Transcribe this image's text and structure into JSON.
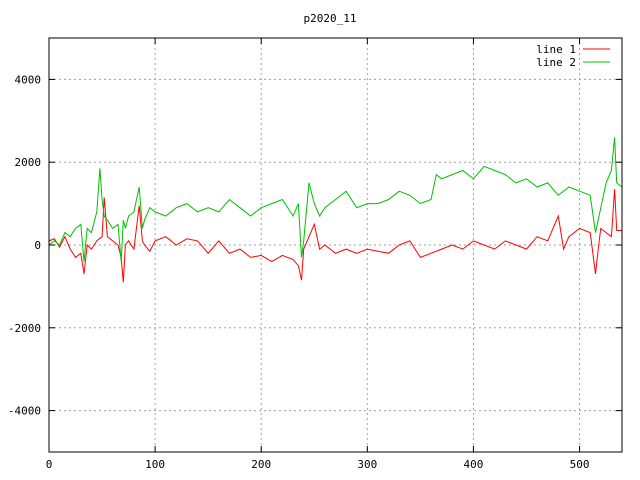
{
  "chart_data": {
    "type": "line",
    "title": "p2020_11",
    "xlabel": "",
    "ylabel": "",
    "xlim": [
      0,
      540
    ],
    "ylim": [
      -5000,
      5000
    ],
    "x_ticks": [
      "0",
      "100",
      "200",
      "300",
      "400",
      "500"
    ],
    "y_ticks": [
      "-4000",
      "-2000",
      "0",
      "2000",
      "4000"
    ],
    "grid": true,
    "legend_position": "top-right",
    "series": [
      {
        "name": "line 1",
        "color": "#ff0000",
        "x": [
          0,
          5,
          10,
          15,
          20,
          25,
          30,
          33,
          36,
          40,
          45,
          50,
          52,
          55,
          60,
          65,
          68,
          70,
          72,
          75,
          80,
          85,
          88,
          90,
          95,
          100,
          110,
          120,
          130,
          140,
          150,
          160,
          170,
          180,
          190,
          200,
          210,
          220,
          230,
          235,
          238,
          240,
          245,
          250,
          255,
          260,
          270,
          280,
          290,
          300,
          310,
          320,
          330,
          340,
          350,
          360,
          370,
          380,
          390,
          400,
          410,
          420,
          430,
          440,
          450,
          460,
          470,
          475,
          480,
          485,
          490,
          500,
          510,
          515,
          518,
          520,
          525,
          530,
          533,
          535,
          540
        ],
        "y": [
          100,
          150,
          -50,
          200,
          -100,
          -300,
          -200,
          -700,
          0,
          -100,
          100,
          200,
          1150,
          200,
          100,
          0,
          -300,
          -900,
          0,
          100,
          -100,
          950,
          100,
          0,
          -150,
          100,
          200,
          0,
          150,
          100,
          -200,
          100,
          -200,
          -100,
          -300,
          -250,
          -400,
          -250,
          -350,
          -500,
          -850,
          -100,
          200,
          500,
          -100,
          0,
          -200,
          -100,
          -200,
          -100,
          -150,
          -200,
          0,
          100,
          -300,
          -200,
          -100,
          0,
          -100,
          100,
          0,
          -100,
          100,
          0,
          -100,
          200,
          100,
          400,
          700,
          -100,
          200,
          400,
          300,
          -700,
          0,
          400,
          300,
          200,
          1350,
          350,
          350
        ]
      },
      {
        "name": "line 2",
        "color": "#00c000",
        "x": [
          0,
          5,
          10,
          15,
          20,
          25,
          30,
          33,
          36,
          40,
          45,
          48,
          50,
          52,
          55,
          60,
          65,
          68,
          70,
          72,
          75,
          80,
          85,
          88,
          90,
          95,
          100,
          110,
          120,
          130,
          140,
          150,
          160,
          170,
          180,
          190,
          200,
          210,
          220,
          230,
          235,
          238,
          240,
          245,
          250,
          255,
          260,
          270,
          280,
          290,
          300,
          310,
          320,
          330,
          340,
          350,
          360,
          365,
          370,
          380,
          390,
          400,
          410,
          420,
          430,
          440,
          450,
          460,
          470,
          480,
          490,
          500,
          510,
          515,
          520,
          525,
          530,
          533,
          535,
          540
        ],
        "y": [
          0,
          100,
          0,
          300,
          200,
          400,
          500,
          -400,
          400,
          300,
          800,
          1850,
          1100,
          700,
          600,
          400,
          500,
          -400,
          600,
          400,
          700,
          800,
          1400,
          400,
          600,
          900,
          800,
          700,
          900,
          1000,
          800,
          900,
          800,
          1100,
          900,
          700,
          900,
          1000,
          1100,
          700,
          1000,
          -300,
          100,
          1500,
          1000,
          700,
          900,
          1100,
          1300,
          900,
          1000,
          1000,
          1100,
          1300,
          1200,
          1000,
          1100,
          1700,
          1600,
          1700,
          1800,
          1600,
          1900,
          1800,
          1700,
          1500,
          1600,
          1400,
          1500,
          1200,
          1400,
          1300,
          1200,
          300,
          900,
          1500,
          1800,
          2600,
          1500,
          1400
        ]
      }
    ]
  }
}
